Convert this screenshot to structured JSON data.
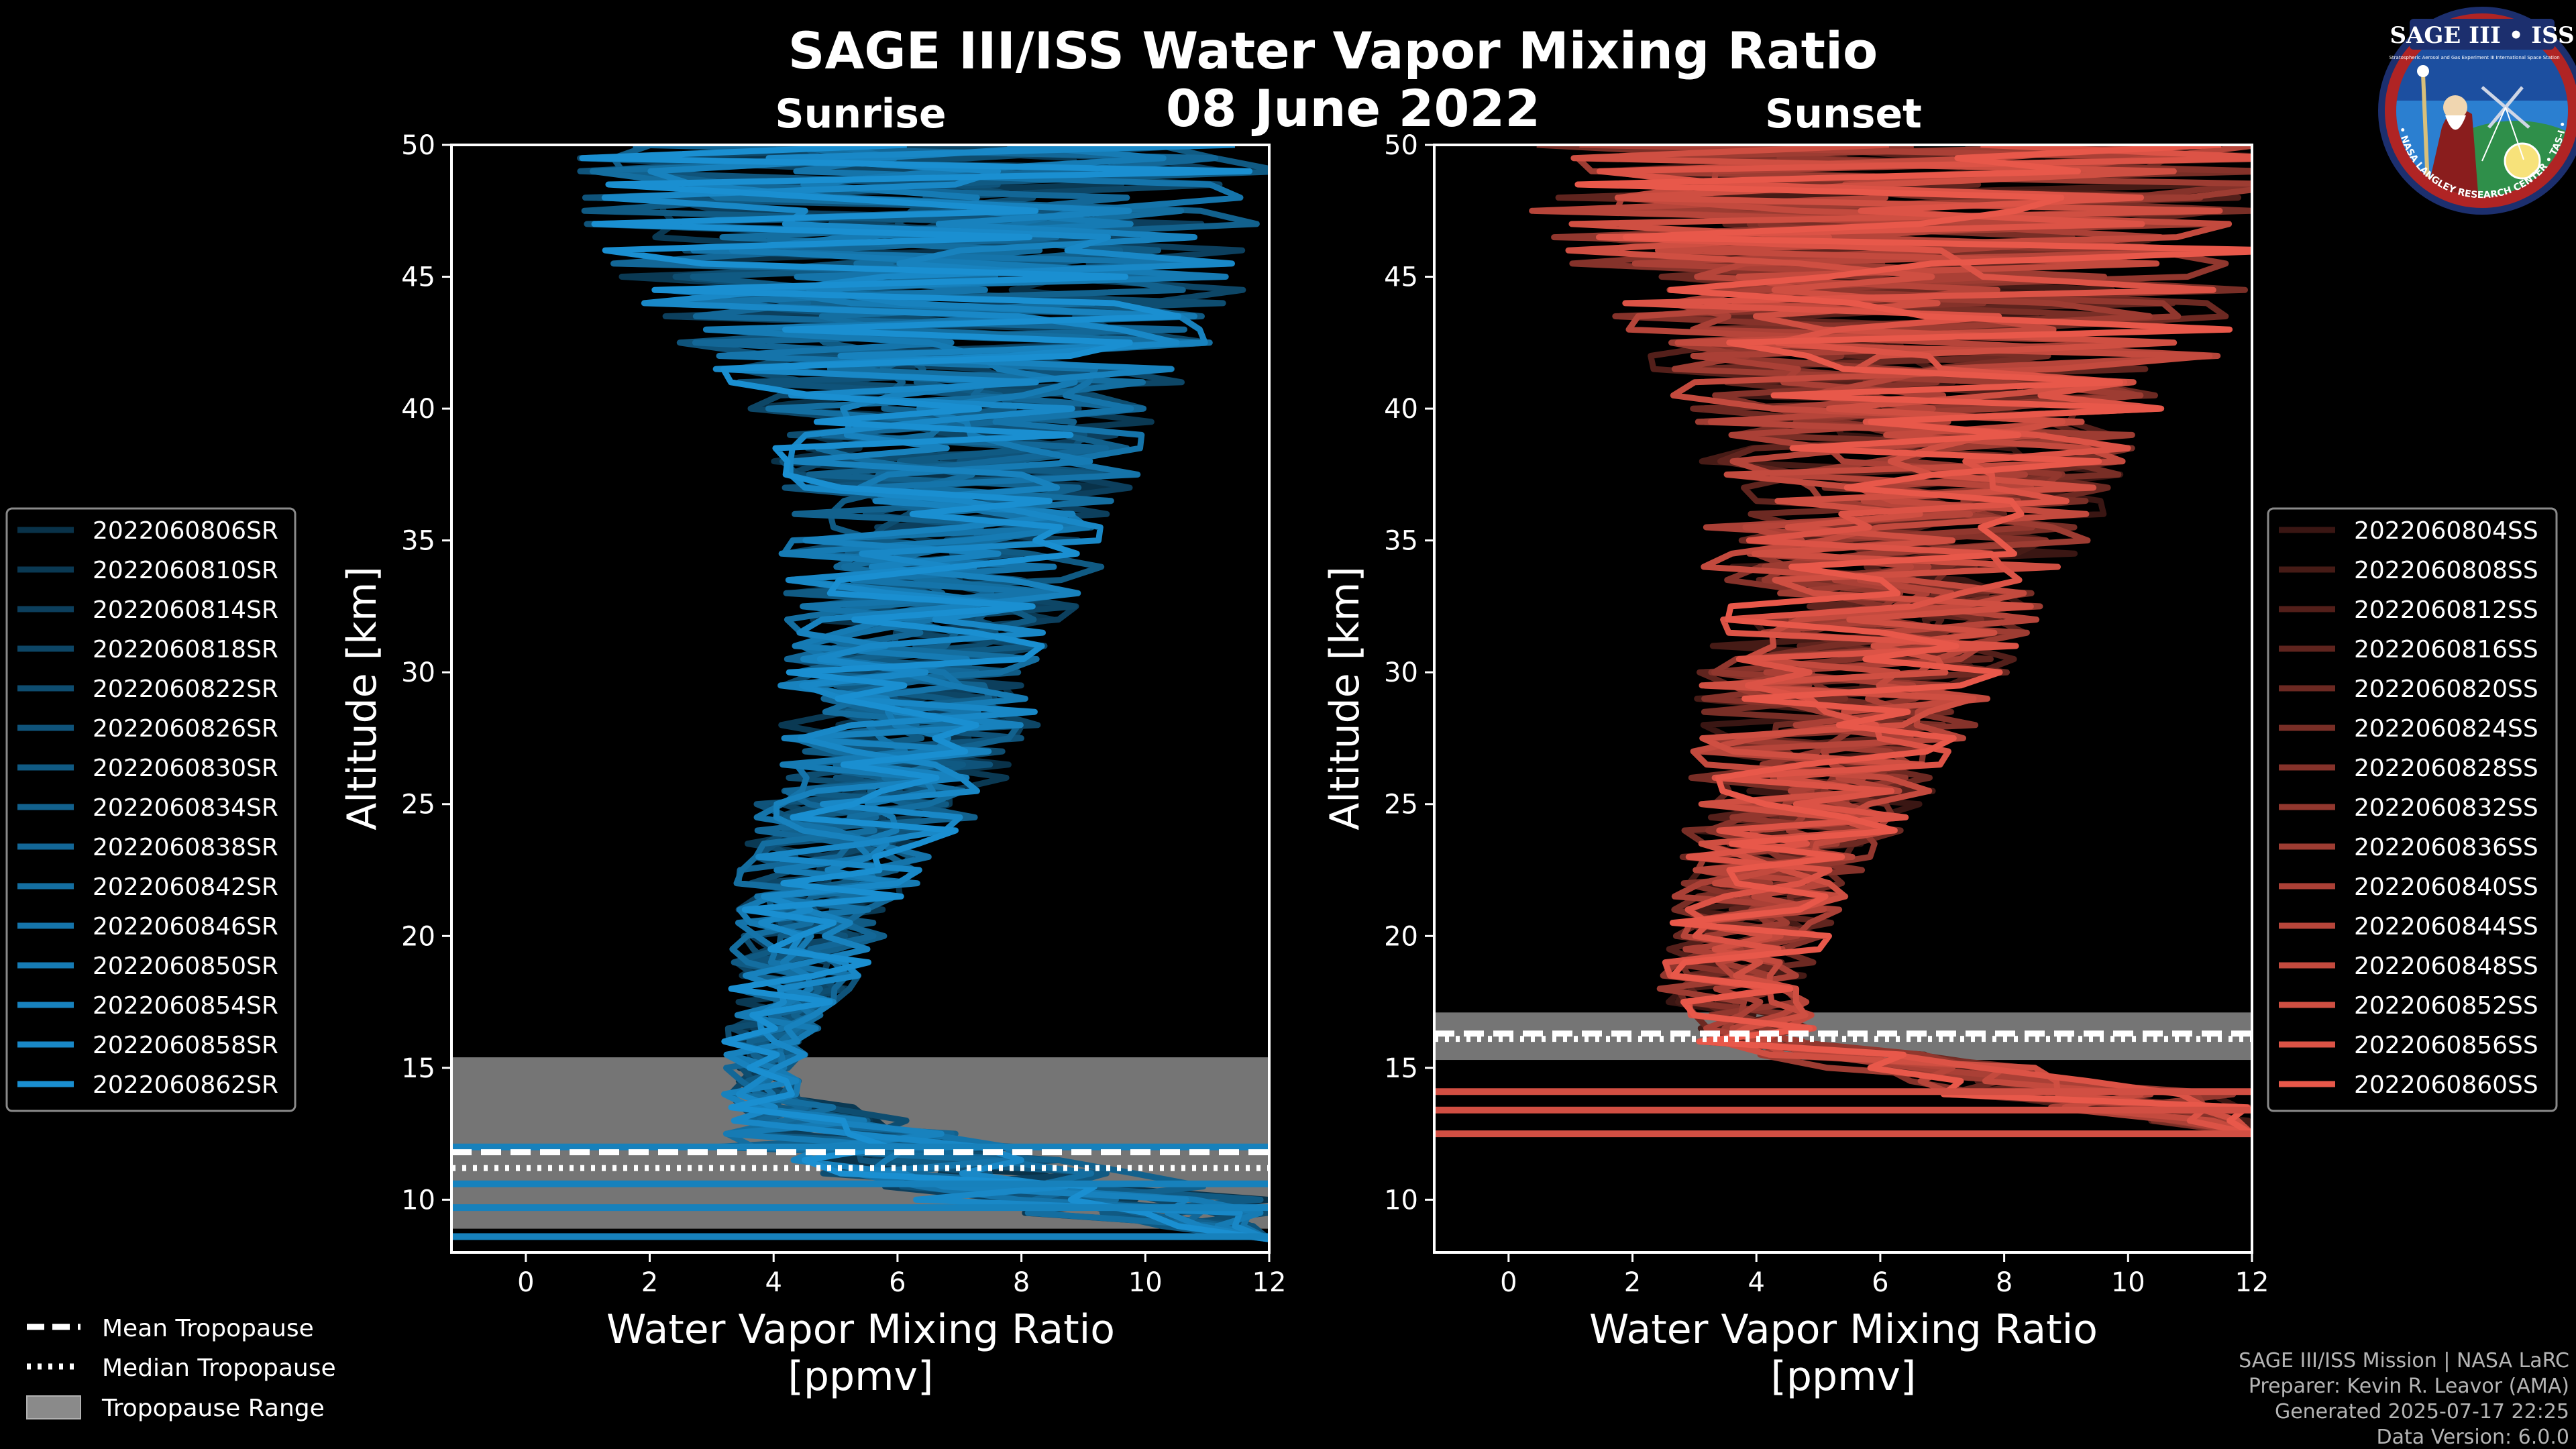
{
  "header": {
    "title": "SAGE III/ISS Water Vapor Mixing Ratio",
    "date": "08 June 2022"
  },
  "logo": {
    "title": "SAGE III • ISS",
    "subtitle_left": "Stratospheric Aerosol and Gas Experiment III",
    "subtitle_right": "International Space Station",
    "ring_text": "BALL • NASA LANGLEY RESEARCH CENTER • TAS-I • ESA"
  },
  "credits": {
    "mission": "SAGE III/ISS Mission | NASA LaRC",
    "preparer": "Preparer: Kevin R. Leavor (AMA)",
    "generated": "Generated 2025-07-17 22:25",
    "version": "Data Version: 6.0.0"
  },
  "tropopause_legend": {
    "mean": "Mean Tropopause",
    "median": "Median Tropopause",
    "range": "Tropopause Range"
  },
  "colors": {
    "sunrise": "#1a8fd1",
    "sunset": "#e8584a",
    "range": "#8a8a8a",
    "background": "#000000"
  },
  "chart_data": [
    {
      "type": "line",
      "panel": "sunrise",
      "title": "Sunrise",
      "xlabel": "Water Vapor Mixing Ratio\n[ppmv]",
      "ylabel": "Altitude [km]",
      "xlim": [
        -1.2,
        12
      ],
      "ylim": [
        8,
        50
      ],
      "xticks": [
        0,
        2,
        4,
        6,
        8,
        10,
        12
      ],
      "yticks": [
        10,
        15,
        20,
        25,
        30,
        35,
        40,
        45,
        50
      ],
      "tropopause": {
        "mean": 11.8,
        "median": 11.2,
        "range": [
          8.9,
          15.4
        ]
      },
      "legend_position": "left",
      "series": [
        {
          "name": "2022060806SR"
        },
        {
          "name": "2022060810SR"
        },
        {
          "name": "2022060814SR"
        },
        {
          "name": "2022060818SR"
        },
        {
          "name": "2022060822SR"
        },
        {
          "name": "2022060826SR"
        },
        {
          "name": "2022060830SR"
        },
        {
          "name": "2022060834SR"
        },
        {
          "name": "2022060838SR"
        },
        {
          "name": "2022060842SR"
        },
        {
          "name": "2022060846SR"
        },
        {
          "name": "2022060850SR"
        },
        {
          "name": "2022060854SR"
        },
        {
          "name": "2022060858SR"
        },
        {
          "name": "2022060862SR"
        }
      ],
      "profile_envelope": [
        {
          "alt": 8.5,
          "mean": 12.0,
          "spread": 0.0
        },
        {
          "alt": 10,
          "mean": 9.0,
          "spread": 3.0
        },
        {
          "alt": 12,
          "mean": 5.5,
          "spread": 2.5
        },
        {
          "alt": 14,
          "mean": 3.8,
          "spread": 0.6
        },
        {
          "alt": 16,
          "mean": 3.9,
          "spread": 0.7
        },
        {
          "alt": 18,
          "mean": 4.3,
          "spread": 1.0
        },
        {
          "alt": 20,
          "mean": 4.6,
          "spread": 1.3
        },
        {
          "alt": 22,
          "mean": 4.9,
          "spread": 1.5
        },
        {
          "alt": 25,
          "mean": 5.6,
          "spread": 1.9
        },
        {
          "alt": 28,
          "mean": 6.2,
          "spread": 2.1
        },
        {
          "alt": 31,
          "mean": 6.4,
          "spread": 2.3
        },
        {
          "alt": 34,
          "mean": 6.7,
          "spread": 2.6
        },
        {
          "alt": 37,
          "mean": 6.9,
          "spread": 2.9
        },
        {
          "alt": 40,
          "mean": 7.0,
          "spread": 3.4
        },
        {
          "alt": 43,
          "mean": 6.8,
          "spread": 4.6
        },
        {
          "alt": 46,
          "mean": 6.6,
          "spread": 5.5
        },
        {
          "alt": 50,
          "mean": 6.4,
          "spread": 6.0
        }
      ]
    },
    {
      "type": "line",
      "panel": "sunset",
      "title": "Sunset",
      "xlabel": "Water Vapor Mixing Ratio\n[ppmv]",
      "ylabel": "Altitude [km]",
      "xlim": [
        -1.2,
        12
      ],
      "ylim": [
        8,
        50
      ],
      "xticks": [
        0,
        2,
        4,
        6,
        8,
        10,
        12
      ],
      "yticks": [
        10,
        15,
        20,
        25,
        30,
        35,
        40,
        45,
        50
      ],
      "tropopause": {
        "mean": 16.3,
        "median": 16.1,
        "range": [
          15.3,
          17.1
        ]
      },
      "legend_position": "right",
      "series": [
        {
          "name": "2022060804SS"
        },
        {
          "name": "2022060808SS"
        },
        {
          "name": "2022060812SS"
        },
        {
          "name": "2022060816SS"
        },
        {
          "name": "2022060820SS"
        },
        {
          "name": "2022060824SS"
        },
        {
          "name": "2022060828SS"
        },
        {
          "name": "2022060832SS"
        },
        {
          "name": "2022060836SS"
        },
        {
          "name": "2022060840SS"
        },
        {
          "name": "2022060844SS"
        },
        {
          "name": "2022060848SS"
        },
        {
          "name": "2022060852SS"
        },
        {
          "name": "2022060856SS"
        },
        {
          "name": "2022060860SS"
        }
      ],
      "profile_envelope": [
        {
          "alt": 12.5,
          "mean": 12.0,
          "spread": 0.0
        },
        {
          "alt": 14,
          "mean": 9.5,
          "spread": 2.5
        },
        {
          "alt": 16,
          "mean": 4.0,
          "spread": 1.0
        },
        {
          "alt": 18,
          "mean": 3.6,
          "spread": 1.2
        },
        {
          "alt": 20,
          "mean": 3.9,
          "spread": 1.3
        },
        {
          "alt": 22,
          "mean": 4.2,
          "spread": 1.5
        },
        {
          "alt": 25,
          "mean": 4.8,
          "spread": 1.9
        },
        {
          "alt": 28,
          "mean": 5.3,
          "spread": 2.3
        },
        {
          "alt": 31,
          "mean": 5.7,
          "spread": 2.6
        },
        {
          "alt": 34,
          "mean": 6.1,
          "spread": 3.0
        },
        {
          "alt": 37,
          "mean": 6.5,
          "spread": 3.4
        },
        {
          "alt": 40,
          "mean": 6.8,
          "spread": 4.0
        },
        {
          "alt": 43,
          "mean": 6.8,
          "spread": 5.0
        },
        {
          "alt": 46,
          "mean": 6.6,
          "spread": 6.0
        },
        {
          "alt": 50,
          "mean": 6.5,
          "spread": 6.5
        }
      ]
    }
  ]
}
